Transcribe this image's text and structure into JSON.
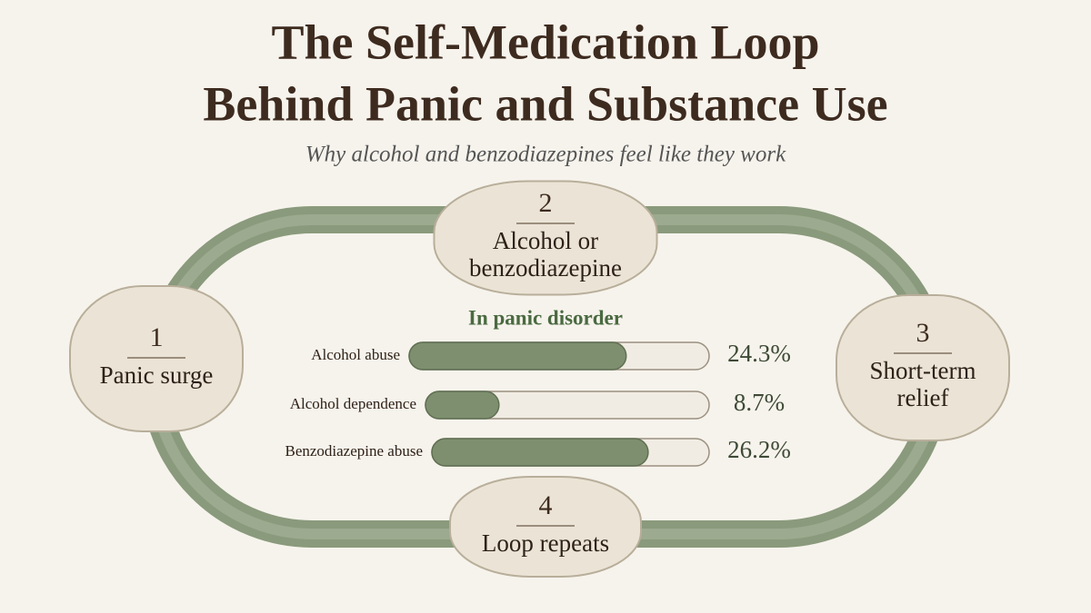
{
  "header": {
    "title": [
      "The Self-Medication Loop",
      "Behind Panic and Substance Use"
    ],
    "subtitle": "Why alcohol and benzodiazepines feel like they work"
  },
  "nodes": [
    {
      "number": "1",
      "label": [
        "Panic surge"
      ]
    },
    {
      "number": "2",
      "label": [
        "Alcohol or",
        "benzodiazepine"
      ]
    },
    {
      "number": "3",
      "label": [
        "Short-term",
        "relief"
      ]
    },
    {
      "number": "4",
      "label": [
        "Loop repeats"
      ]
    }
  ],
  "chart_data": {
    "type": "bar",
    "orientation": "horizontal",
    "title": "In panic disorder",
    "categories": [
      "Alcohol abuse",
      "Alcohol dependence",
      "Benzodiazepine abuse"
    ],
    "values": [
      24.3,
      8.7,
      26.2
    ],
    "value_labels": [
      "24.3%",
      "8.7%",
      "26.2%"
    ],
    "color": "#7e8f6f"
  }
}
